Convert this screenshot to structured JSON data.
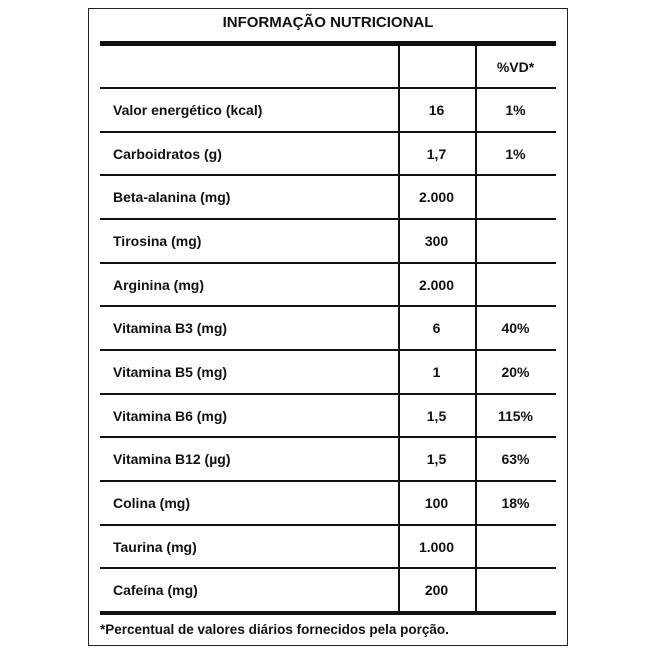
{
  "title": "INFORMAÇÃO NUTRICIONAL",
  "table": {
    "header": {
      "vd": "%VD*"
    },
    "rows": [
      {
        "name": "Valor energético (kcal)",
        "amount": "16",
        "vd": "1%"
      },
      {
        "name": "Carboidratos (g)",
        "amount": "1,7",
        "vd": "1%"
      },
      {
        "name": "Beta-alanina (mg)",
        "amount": "2.000"
      },
      {
        "name": "Tirosina (mg)",
        "amount": "300"
      },
      {
        "name": "Arginina (mg)",
        "amount": "2.000"
      },
      {
        "name": "Vitamina B3 (mg)",
        "amount": "6",
        "vd": "40%"
      },
      {
        "name": "Vitamina B5 (mg)",
        "amount": "1",
        "vd": "20%"
      },
      {
        "name": "Vitamina B6 (mg)",
        "amount": "1,5",
        "vd": "115%"
      },
      {
        "name": "Vitamina B12 (µg)",
        "amount": "1,5",
        "vd": "63%"
      },
      {
        "name": "Colina (mg)",
        "amount": "100",
        "vd": "18%"
      },
      {
        "name": "Taurina (mg)",
        "amount": "1.000"
      },
      {
        "name": "Cafeína (mg)",
        "amount": "200"
      }
    ]
  },
  "footnote": "*Percentual de valores diários fornecidos pela porção."
}
